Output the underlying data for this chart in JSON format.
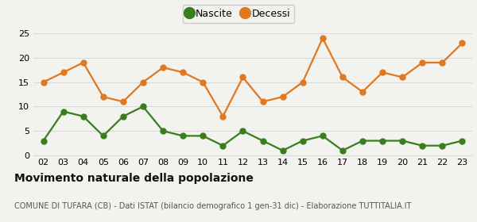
{
  "years": [
    "02",
    "03",
    "04",
    "05",
    "06",
    "07",
    "08",
    "09",
    "10",
    "11",
    "12",
    "13",
    "14",
    "15",
    "16",
    "17",
    "18",
    "19",
    "20",
    "21",
    "22",
    "23"
  ],
  "nascite": [
    3,
    9,
    8,
    4,
    8,
    10,
    5,
    4,
    4,
    2,
    5,
    3,
    1,
    3,
    4,
    1,
    3,
    3,
    3,
    2,
    2,
    3
  ],
  "decessi": [
    15,
    17,
    19,
    12,
    11,
    15,
    18,
    17,
    15,
    8,
    16,
    11,
    12,
    15,
    24,
    16,
    13,
    17,
    16,
    19,
    19,
    23
  ],
  "nascite_color": "#3a7d1e",
  "decessi_color": "#e07820",
  "background_color": "#f2f2ee",
  "grid_color": "#d8d8d8",
  "title": "Movimento naturale della popolazione",
  "subtitle": "COMUNE DI TUFARA (CB) - Dati ISTAT (bilancio demografico 1 gen-31 dic) - Elaborazione TUTTITALIA.IT",
  "legend_nascite": "Nascite",
  "legend_decessi": "Decessi",
  "ylim": [
    0,
    25
  ],
  "yticks": [
    0,
    5,
    10,
    15,
    20,
    25
  ],
  "title_fontsize": 10,
  "subtitle_fontsize": 7,
  "legend_fontsize": 9,
  "tick_fontsize": 8,
  "marker_size": 5,
  "line_width": 1.6
}
